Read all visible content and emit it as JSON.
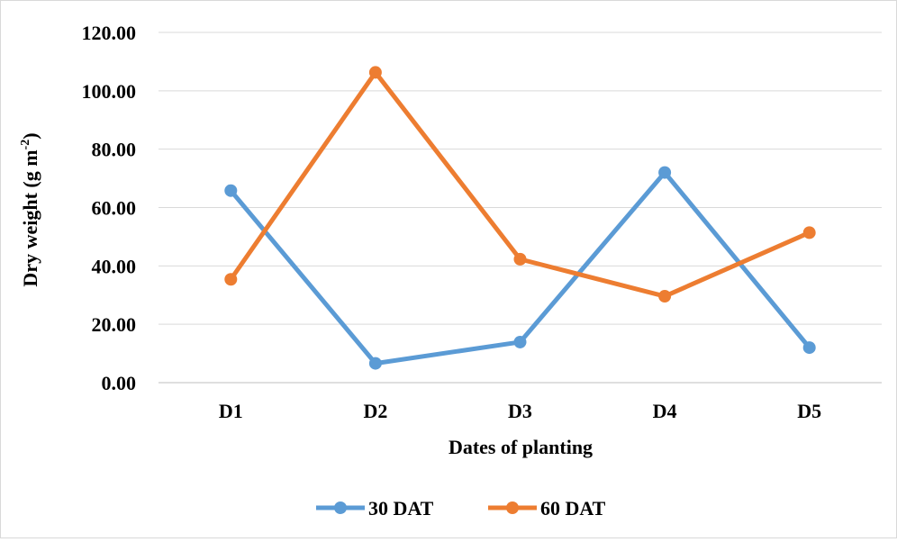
{
  "chart_data": {
    "type": "line",
    "categories": [
      "D1",
      "D2",
      "D3",
      "D4",
      "D5"
    ],
    "series": [
      {
        "name": "30 DAT",
        "color": "#5b9bd5",
        "values": [
          65.8,
          6.6,
          13.9,
          72.0,
          12.0
        ]
      },
      {
        "name": "60 DAT",
        "color": "#ed7d31",
        "values": [
          35.4,
          106.3,
          42.3,
          29.6,
          51.4
        ]
      }
    ],
    "xlabel": "Dates of planting",
    "ylabel_main": "Dry weight (g m",
    "ylabel_sup": "-2",
    "ylabel_end": ")",
    "ylim": [
      0,
      120
    ],
    "yticks": [
      "0.00",
      "20.00",
      "40.00",
      "60.00",
      "80.00",
      "100.00",
      "120.00"
    ],
    "grid": true,
    "legend_position": "bottom"
  }
}
